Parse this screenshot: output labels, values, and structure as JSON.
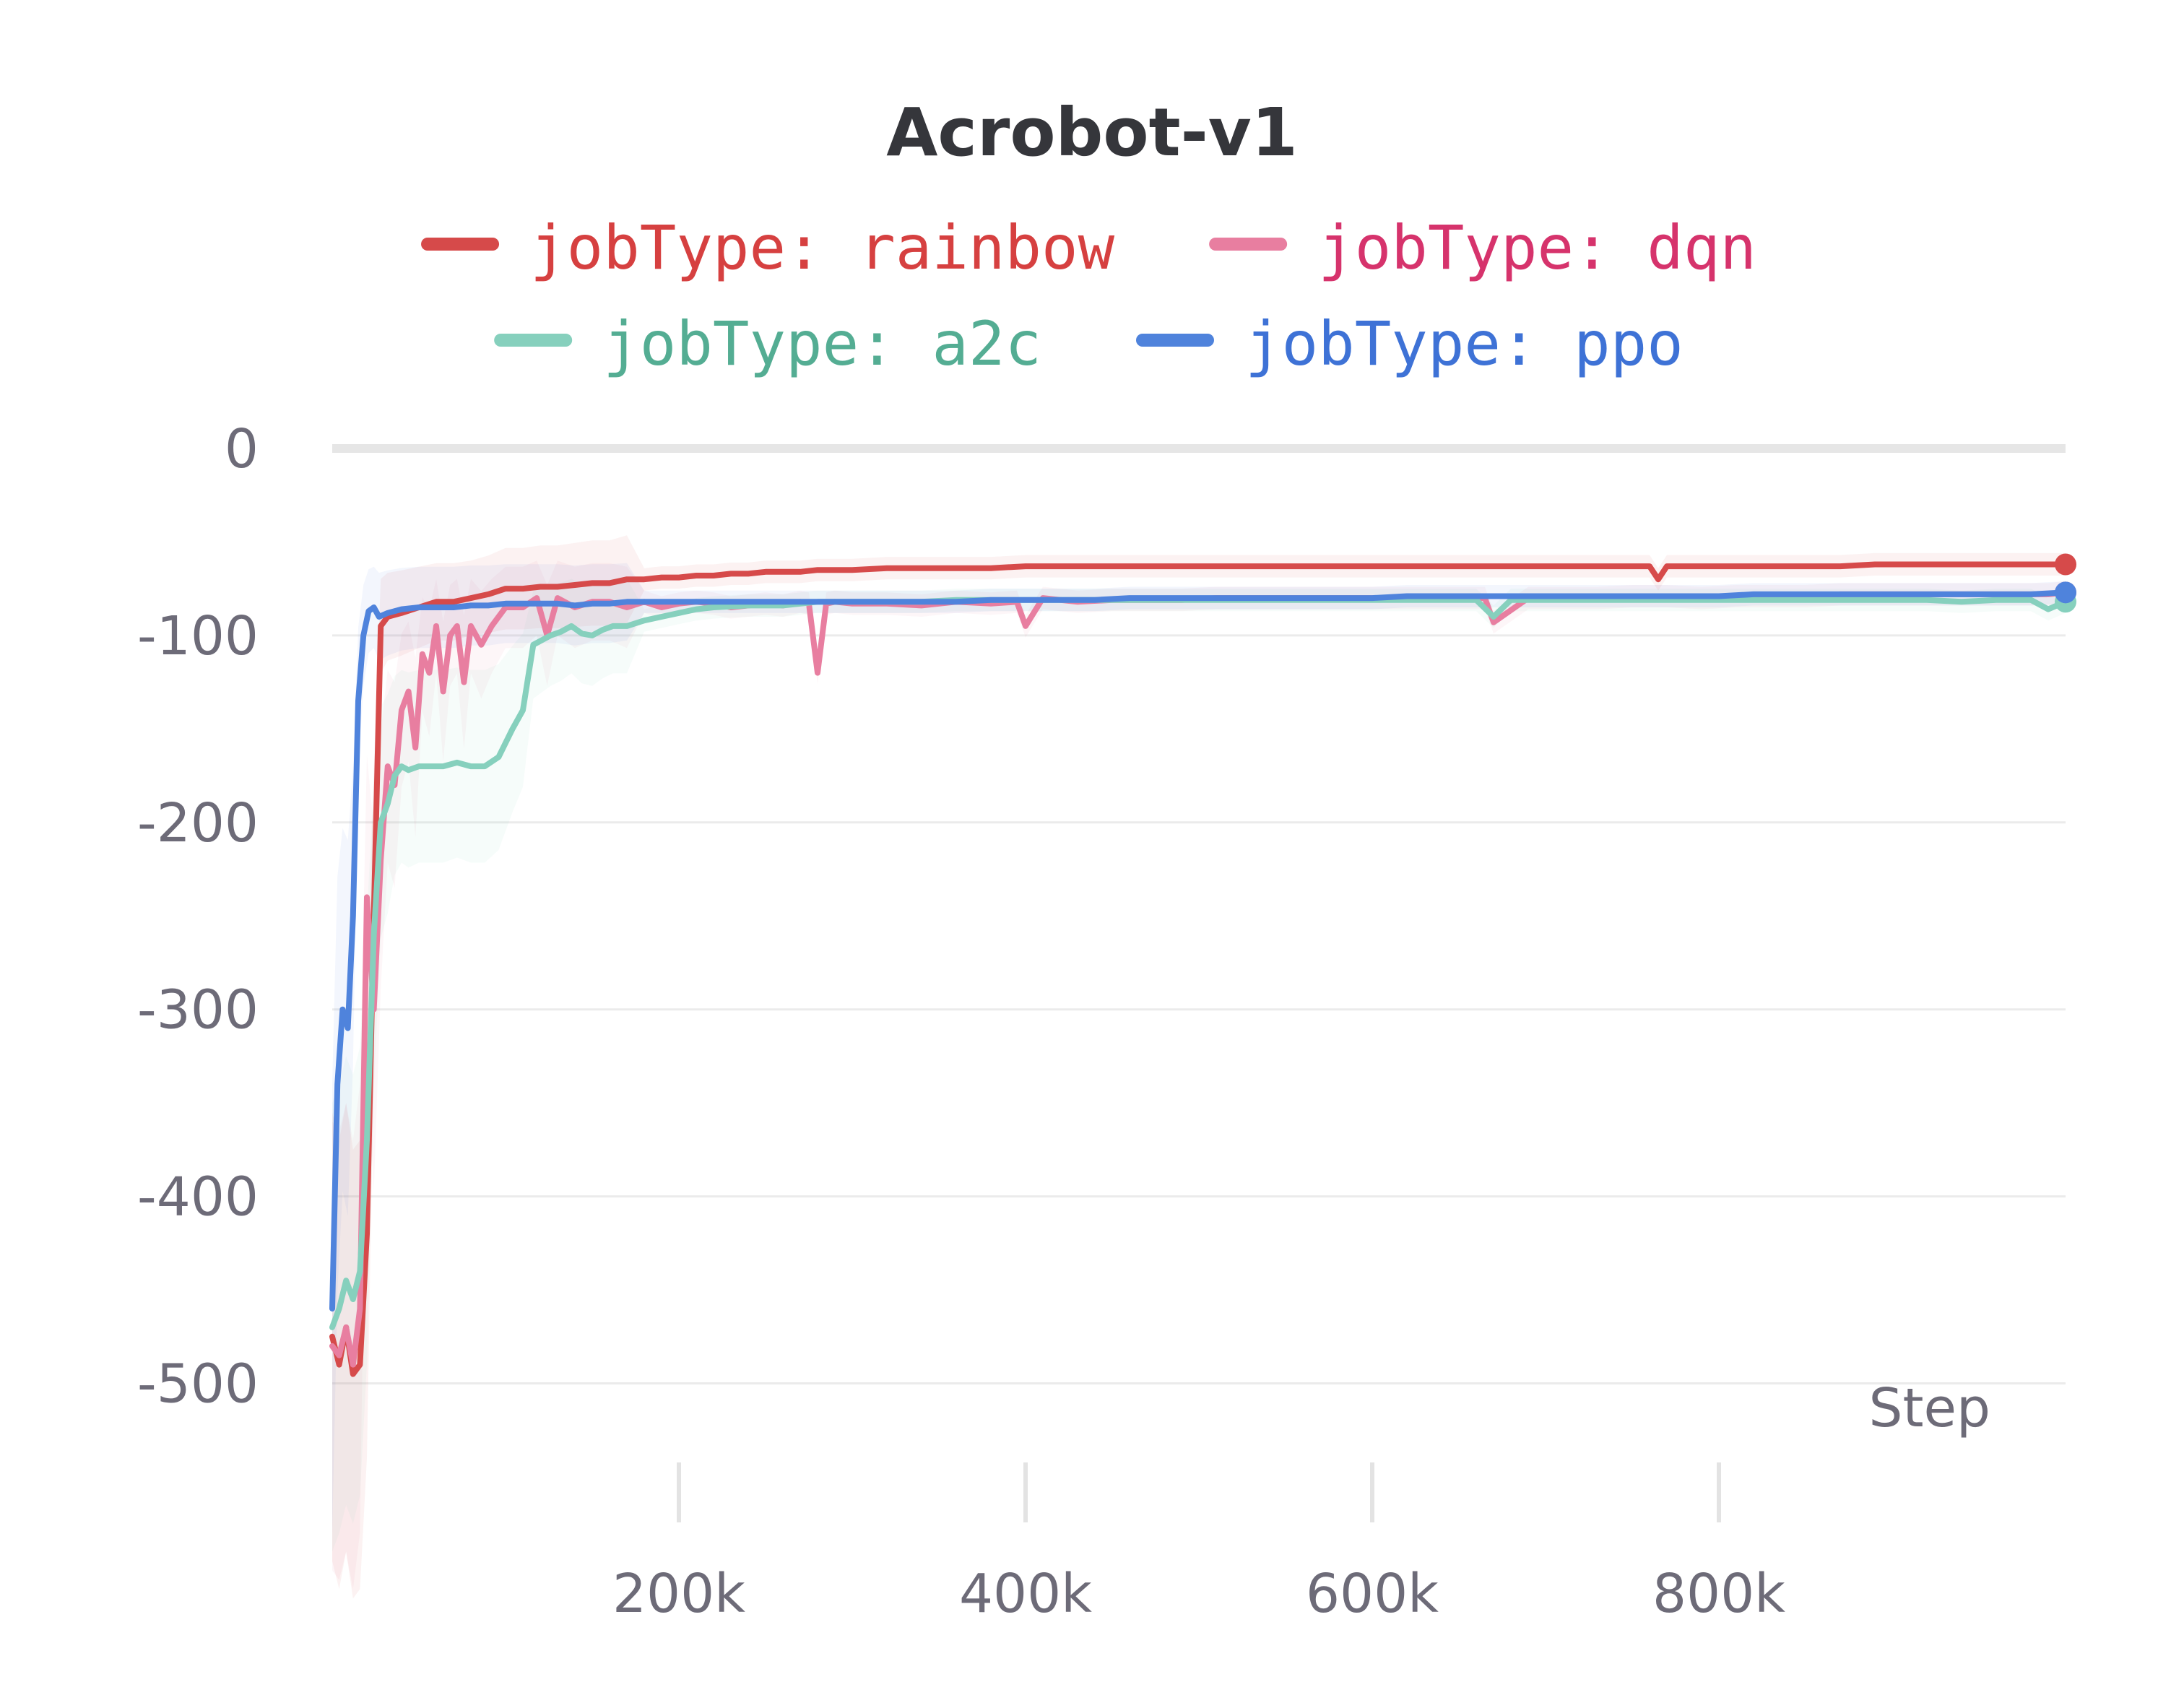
{
  "chart_data": {
    "type": "line",
    "title": "Acrobot-v1",
    "xlabel": "Step",
    "ylabel": "",
    "xlim": [
      0,
      1000000
    ],
    "ylim": [
      -550,
      5
    ],
    "x_ticks": [
      200000,
      400000,
      600000,
      800000
    ],
    "x_tick_labels": [
      "200k",
      "400k",
      "600k",
      "800k"
    ],
    "y_ticks": [
      0,
      -100,
      -200,
      -300,
      -400,
      -500
    ],
    "y_tick_labels": [
      "0",
      "-100",
      "-200",
      "-300",
      "-400",
      "-500"
    ],
    "grid": "horizontal",
    "legend_position": "top",
    "series": [
      {
        "name": "jobType: rainbow",
        "color": "#d64a4a",
        "x": [
          0,
          4000,
          8000,
          12000,
          16000,
          20000,
          24000,
          28000,
          32000,
          40000,
          50000,
          60000,
          70000,
          80000,
          90000,
          100000,
          110000,
          120000,
          130000,
          140000,
          150000,
          160000,
          170000,
          180000,
          190000,
          200000,
          210000,
          220000,
          230000,
          240000,
          250000,
          260000,
          270000,
          280000,
          290000,
          300000,
          320000,
          340000,
          360000,
          380000,
          400000,
          420000,
          440000,
          460000,
          480000,
          500000,
          520000,
          540000,
          560000,
          580000,
          600000,
          620000,
          640000,
          660000,
          680000,
          700000,
          720000,
          740000,
          760000,
          765000,
          770000,
          790000,
          810000,
          830000,
          850000,
          870000,
          890000,
          910000,
          930000,
          950000,
          970000,
          990000,
          1000000
        ],
        "y": [
          -475,
          -490,
          -470,
          -495,
          -490,
          -420,
          -250,
          -95,
          -90,
          -88,
          -85,
          -82,
          -82,
          -80,
          -78,
          -75,
          -75,
          -74,
          -74,
          -73,
          -72,
          -72,
          -70,
          -70,
          -69,
          -69,
          -68,
          -68,
          -67,
          -67,
          -66,
          -66,
          -66,
          -65,
          -65,
          -65,
          -64,
          -64,
          -64,
          -64,
          -63,
          -63,
          -63,
          -63,
          -63,
          -63,
          -63,
          -63,
          -63,
          -63,
          -63,
          -63,
          -63,
          -63,
          -63,
          -63,
          -63,
          -63,
          -63,
          -70,
          -63,
          -63,
          -63,
          -63,
          -63,
          -63,
          -62,
          -62,
          -62,
          -62,
          -62,
          -62,
          -62
        ]
      },
      {
        "name": "jobType: dqn",
        "color": "#e87ea0",
        "x": [
          0,
          4000,
          8000,
          12000,
          16000,
          20000,
          24000,
          28000,
          32000,
          36000,
          40000,
          44000,
          48000,
          52000,
          56000,
          60000,
          64000,
          68000,
          72000,
          76000,
          80000,
          86000,
          92000,
          100000,
          110000,
          118000,
          124000,
          130000,
          140000,
          150000,
          160000,
          170000,
          180000,
          190000,
          200000,
          210000,
          220000,
          230000,
          240000,
          250000,
          260000,
          270000,
          275000,
          280000,
          285000,
          290000,
          300000,
          320000,
          340000,
          360000,
          380000,
          395000,
          400000,
          410000,
          430000,
          450000,
          470000,
          490000,
          510000,
          530000,
          550000,
          570000,
          590000,
          610000,
          630000,
          650000,
          665000,
          670000,
          690000,
          710000,
          730000,
          750000,
          770000,
          790000,
          810000,
          830000,
          850000,
          870000,
          890000,
          910000,
          930000,
          950000,
          970000,
          990000,
          1000000
        ],
        "y": [
          -480,
          -485,
          -470,
          -490,
          -460,
          -240,
          -300,
          -220,
          -170,
          -180,
          -140,
          -130,
          -160,
          -110,
          -120,
          -95,
          -130,
          -100,
          -95,
          -125,
          -95,
          -105,
          -95,
          -85,
          -85,
          -80,
          -100,
          -80,
          -85,
          -82,
          -82,
          -85,
          -82,
          -85,
          -83,
          -82,
          -83,
          -85,
          -84,
          -83,
          -84,
          -82,
          -83,
          -120,
          -83,
          -82,
          -83,
          -83,
          -84,
          -82,
          -83,
          -82,
          -95,
          -80,
          -82,
          -81,
          -81,
          -81,
          -80,
          -80,
          -80,
          -80,
          -80,
          -80,
          -80,
          -80,
          -80,
          -93,
          -80,
          -80,
          -80,
          -79,
          -79,
          -80,
          -79,
          -79,
          -79,
          -78,
          -78,
          -78,
          -78,
          -78,
          -78,
          -78,
          -77
        ]
      },
      {
        "name": "jobType: a2c",
        "color": "#86d0bd",
        "x": [
          0,
          4000,
          8000,
          12000,
          16000,
          20000,
          24000,
          28000,
          32000,
          36000,
          40000,
          44000,
          50000,
          56000,
          64000,
          72000,
          80000,
          88000,
          96000,
          104000,
          110000,
          116000,
          120000,
          126000,
          132000,
          138000,
          144000,
          150000,
          156000,
          162000,
          170000,
          180000,
          190000,
          200000,
          210000,
          220000,
          240000,
          260000,
          280000,
          300000,
          320000,
          340000,
          360000,
          380000,
          400000,
          420000,
          440000,
          460000,
          480000,
          500000,
          520000,
          540000,
          560000,
          580000,
          600000,
          620000,
          640000,
          660000,
          670000,
          680000,
          700000,
          720000,
          740000,
          760000,
          780000,
          800000,
          820000,
          840000,
          860000,
          880000,
          900000,
          920000,
          940000,
          960000,
          980000,
          990000,
          1000000
        ],
        "y": [
          -470,
          -460,
          -445,
          -455,
          -440,
          -370,
          -260,
          -200,
          -190,
          -175,
          -170,
          -172,
          -170,
          -170,
          -170,
          -168,
          -170,
          -170,
          -165,
          -150,
          -140,
          -105,
          -103,
          -100,
          -98,
          -95,
          -99,
          -100,
          -97,
          -95,
          -95,
          -92,
          -90,
          -88,
          -86,
          -85,
          -84,
          -84,
          -82,
          -82,
          -82,
          -82,
          -81,
          -81,
          -81,
          -81,
          -81,
          -81,
          -81,
          -81,
          -81,
          -81,
          -81,
          -81,
          -81,
          -81,
          -81,
          -81,
          -90,
          -81,
          -81,
          -81,
          -81,
          -81,
          -81,
          -81,
          -81,
          -81,
          -81,
          -81,
          -81,
          -81,
          -82,
          -81,
          -81,
          -86,
          -82
        ]
      },
      {
        "name": "jobType: ppo",
        "color": "#4f83dc",
        "x": [
          0,
          3000,
          6000,
          9000,
          12000,
          15000,
          18000,
          21000,
          24000,
          27000,
          32000,
          40000,
          50000,
          60000,
          70000,
          80000,
          90000,
          100000,
          110000,
          120000,
          130000,
          140000,
          150000,
          160000,
          170000,
          180000,
          190000,
          200000,
          220000,
          240000,
          260000,
          280000,
          300000,
          320000,
          340000,
          360000,
          380000,
          400000,
          420000,
          440000,
          460000,
          480000,
          500000,
          520000,
          540000,
          560000,
          580000,
          600000,
          620000,
          640000,
          660000,
          680000,
          700000,
          720000,
          740000,
          760000,
          780000,
          800000,
          820000,
          840000,
          860000,
          880000,
          900000,
          920000,
          940000,
          960000,
          980000,
          1000000
        ],
        "y": [
          -460,
          -340,
          -300,
          -310,
          -250,
          -135,
          -100,
          -87,
          -85,
          -90,
          -88,
          -86,
          -85,
          -85,
          -85,
          -84,
          -84,
          -83,
          -83,
          -83,
          -83,
          -84,
          -83,
          -83,
          -82,
          -82,
          -82,
          -82,
          -82,
          -82,
          -82,
          -82,
          -82,
          -82,
          -82,
          -82,
          -81,
          -81,
          -81,
          -81,
          -80,
          -80,
          -80,
          -80,
          -80,
          -80,
          -80,
          -80,
          -79,
          -79,
          -79,
          -79,
          -79,
          -79,
          -79,
          -79,
          -79,
          -79,
          -78,
          -78,
          -78,
          -78,
          -78,
          -78,
          -78,
          -78,
          -78,
          -77
        ]
      }
    ]
  }
}
